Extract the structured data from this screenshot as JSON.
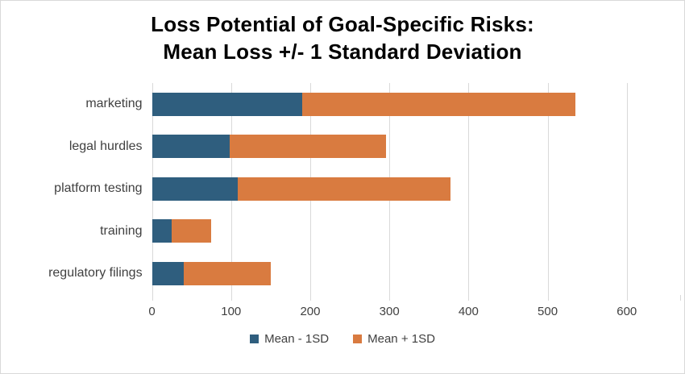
{
  "title": {
    "line1": "Loss Potential of Goal-Specific Risks:",
    "line2": "Mean Loss +/- 1 Standard Deviation"
  },
  "chart_data": {
    "type": "bar",
    "orientation": "horizontal",
    "stacked": true,
    "title": "Loss Potential of Goal-Specific Risks: Mean Loss +/- 1 Standard Deviation",
    "categories": [
      "marketing",
      "legal hurdles",
      "platform testing",
      "training",
      "regulatory filings"
    ],
    "series": [
      {
        "name": "Mean - 1SD",
        "color": "#2F5E7E",
        "values": [
          190,
          98,
          108,
          25,
          40
        ]
      },
      {
        "name": "Mean + 1SD",
        "color": "#D97B40",
        "values": [
          535,
          296,
          377,
          75,
          150
        ]
      }
    ],
    "series_note": "values are cumulative bar end positions; blue segment spans 0 to Mean-1SD, orange segment spans Mean-1SD to Mean+1SD",
    "xlabel": "",
    "ylabel": "",
    "x_ticks": [
      0,
      100,
      200,
      300,
      400,
      500,
      600
    ],
    "xlim": [
      0,
      667
    ],
    "grid": "vertical",
    "legend_position": "bottom"
  },
  "legend": {
    "items": [
      {
        "label": "Mean - 1SD",
        "color": "#2F5E7E"
      },
      {
        "label": "Mean + 1SD",
        "color": "#D97B40"
      }
    ]
  },
  "colors": {
    "grid": "#d9d9d9",
    "tick_text": "#404040",
    "category_text": "#404040",
    "title_text": "#000000",
    "background": "#ffffff"
  }
}
